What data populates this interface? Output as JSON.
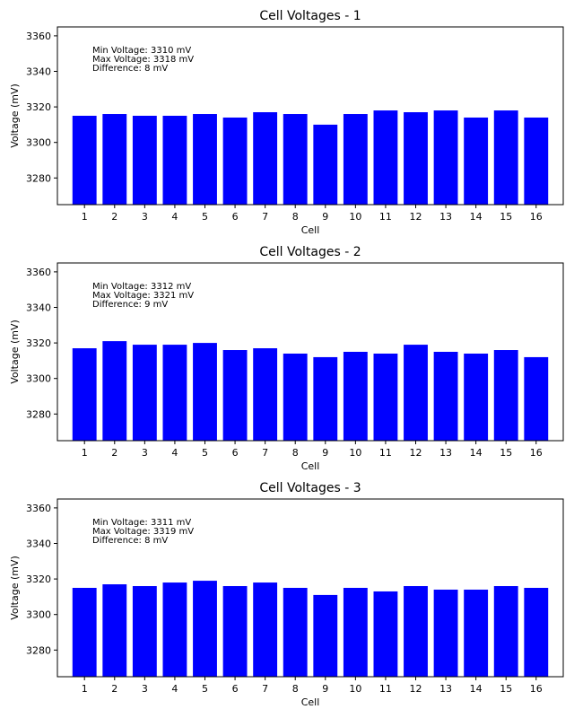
{
  "chart_data": [
    {
      "type": "bar",
      "title": "Cell Voltages - 1",
      "xlabel": "Cell",
      "ylabel": "Voltage (mV)",
      "categories": [
        "1",
        "2",
        "3",
        "4",
        "5",
        "6",
        "7",
        "8",
        "9",
        "10",
        "11",
        "12",
        "13",
        "14",
        "15",
        "16"
      ],
      "values": [
        3315,
        3316,
        3315,
        3315,
        3316,
        3314,
        3317,
        3316,
        3310,
        3316,
        3318,
        3317,
        3318,
        3314,
        3318,
        3314
      ],
      "ylim": [
        3265,
        3365
      ],
      "yticks": [
        3280,
        3300,
        3320,
        3340,
        3360
      ],
      "bar_color": "#0000ff",
      "grid": false,
      "annotations": [
        "Min Voltage: 3310 mV",
        "Max Voltage: 3318 mV",
        "Difference: 8 mV"
      ]
    },
    {
      "type": "bar",
      "title": "Cell Voltages - 2",
      "xlabel": "Cell",
      "ylabel": "Voltage (mV)",
      "categories": [
        "1",
        "2",
        "3",
        "4",
        "5",
        "6",
        "7",
        "8",
        "9",
        "10",
        "11",
        "12",
        "13",
        "14",
        "15",
        "16"
      ],
      "values": [
        3317,
        3321,
        3319,
        3319,
        3320,
        3316,
        3317,
        3314,
        3312,
        3315,
        3314,
        3319,
        3315,
        3314,
        3316,
        3312
      ],
      "ylim": [
        3265,
        3365
      ],
      "yticks": [
        3280,
        3300,
        3320,
        3340,
        3360
      ],
      "bar_color": "#0000ff",
      "grid": false,
      "annotations": [
        "Min Voltage: 3312 mV",
        "Max Voltage: 3321 mV",
        "Difference: 9 mV"
      ]
    },
    {
      "type": "bar",
      "title": "Cell Voltages - 3",
      "xlabel": "Cell",
      "ylabel": "Voltage (mV)",
      "categories": [
        "1",
        "2",
        "3",
        "4",
        "5",
        "6",
        "7",
        "8",
        "9",
        "10",
        "11",
        "12",
        "13",
        "14",
        "15",
        "16"
      ],
      "values": [
        3315,
        3317,
        3316,
        3318,
        3319,
        3316,
        3318,
        3315,
        3311,
        3315,
        3313,
        3316,
        3314,
        3314,
        3316,
        3315
      ],
      "ylim": [
        3265,
        3365
      ],
      "yticks": [
        3280,
        3300,
        3320,
        3340,
        3360
      ],
      "bar_color": "#0000ff",
      "grid": false,
      "annotations": [
        "Min Voltage: 3311 mV",
        "Max Voltage: 3319 mV",
        "Difference: 8 mV"
      ]
    }
  ]
}
